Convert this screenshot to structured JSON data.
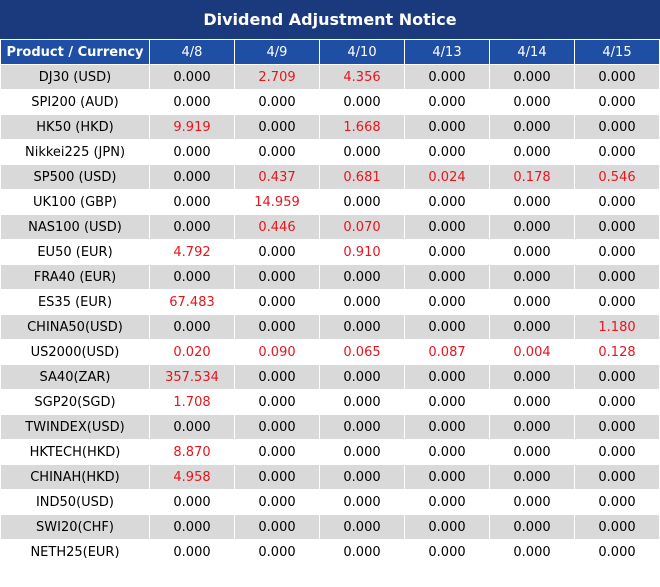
{
  "header": {
    "title": "Dividend Adjustment Notice"
  },
  "table": {
    "columns": [
      "Product / Currency",
      "4/8",
      "4/9",
      "4/10",
      "4/13",
      "4/14",
      "4/15"
    ],
    "rows": [
      [
        "DJ30 (USD)",
        "0.000",
        "2.709",
        "4.356",
        "0.000",
        "0.000",
        "0.000"
      ],
      [
        "SPI200 (AUD)",
        "0.000",
        "0.000",
        "0.000",
        "0.000",
        "0.000",
        "0.000"
      ],
      [
        "HK50 (HKD)",
        "9.919",
        "0.000",
        "1.668",
        "0.000",
        "0.000",
        "0.000"
      ],
      [
        "Nikkei225 (JPN)",
        "0.000",
        "0.000",
        "0.000",
        "0.000",
        "0.000",
        "0.000"
      ],
      [
        "SP500 (USD)",
        "0.000",
        "0.437",
        "0.681",
        "0.024",
        "0.178",
        "0.546"
      ],
      [
        "UK100 (GBP)",
        "0.000",
        "14.959",
        "0.000",
        "0.000",
        "0.000",
        "0.000"
      ],
      [
        "NAS100 (USD)",
        "0.000",
        "0.446",
        "0.070",
        "0.000",
        "0.000",
        "0.000"
      ],
      [
        "EU50 (EUR)",
        "4.792",
        "0.000",
        "0.910",
        "0.000",
        "0.000",
        "0.000"
      ],
      [
        "FRA40 (EUR)",
        "0.000",
        "0.000",
        "0.000",
        "0.000",
        "0.000",
        "0.000"
      ],
      [
        "ES35 (EUR)",
        "67.483",
        "0.000",
        "0.000",
        "0.000",
        "0.000",
        "0.000"
      ],
      [
        "CHINA50(USD)",
        "0.000",
        "0.000",
        "0.000",
        "0.000",
        "0.000",
        "1.180"
      ],
      [
        "US2000(USD)",
        "0.020",
        "0.090",
        "0.065",
        "0.087",
        "0.004",
        "0.128"
      ],
      [
        "SA40(ZAR)",
        "357.534",
        "0.000",
        "0.000",
        "0.000",
        "0.000",
        "0.000"
      ],
      [
        "SGP20(SGD)",
        "1.708",
        "0.000",
        "0.000",
        "0.000",
        "0.000",
        "0.000"
      ],
      [
        "TWINDEX(USD)",
        "0.000",
        "0.000",
        "0.000",
        "0.000",
        "0.000",
        "0.000"
      ],
      [
        "HKTECH(HKD)",
        "8.870",
        "0.000",
        "0.000",
        "0.000",
        "0.000",
        "0.000"
      ],
      [
        "CHINAH(HKD)",
        "4.958",
        "0.000",
        "0.000",
        "0.000",
        "0.000",
        "0.000"
      ],
      [
        "IND50(USD)",
        "0.000",
        "0.000",
        "0.000",
        "0.000",
        "0.000",
        "0.000"
      ],
      [
        "SWI20(CHF)",
        "0.000",
        "0.000",
        "0.000",
        "0.000",
        "0.000",
        "0.000"
      ],
      [
        "NETH25(EUR)",
        "0.000",
        "0.000",
        "0.000",
        "0.000",
        "0.000",
        "0.000"
      ]
    ]
  }
}
